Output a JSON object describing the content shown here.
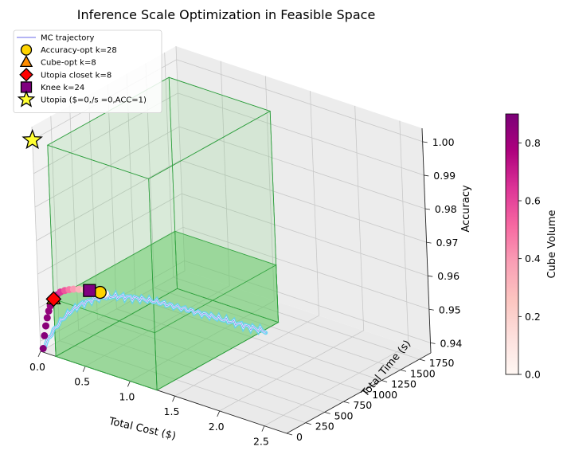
{
  "chart_data": {
    "type": "scatter3d",
    "title": "Inference Scale Optimization in Feasible Space",
    "xlabel": "Total Cost ($)",
    "ylabel": "Total Time (s)",
    "zlabel": "Accuracy",
    "xlim": [
      0,
      2.75
    ],
    "ylim": [
      0,
      1900
    ],
    "zlim": [
      0.937,
      1.004
    ],
    "x_ticks": [
      "0.0",
      "0.5",
      "1.0",
      "1.5",
      "2.0",
      "2.5"
    ],
    "y_ticks": [
      "0",
      "250",
      "500",
      "750",
      "1000",
      "1250",
      "1500",
      "1750"
    ],
    "z_ticks": [
      "0.94",
      "0.95",
      "0.96",
      "0.97",
      "0.98",
      "0.99",
      "1.00"
    ],
    "colorbar": {
      "label": "Cube Volume",
      "range": [
        0,
        0.9
      ],
      "ticks": [
        "0.0",
        "0.2",
        "0.4",
        "0.6",
        "0.8"
      ],
      "colormap": [
        "#fff7f3",
        "#fde0dd",
        "#fcc5c0",
        "#fa9fb5",
        "#f768a1",
        "#dd3497",
        "#ae017e",
        "#7a0177"
      ]
    },
    "legend": [
      {
        "label": "MC trajectory",
        "marker": "line",
        "color": "#6a6ae8"
      },
      {
        "label": "Accuracy-opt k=28",
        "marker": "circle",
        "color": "#ffd400"
      },
      {
        "label": "Cube-opt k=8",
        "marker": "triangle",
        "color": "#ff8c00"
      },
      {
        "label": "Utopia closet k=8",
        "marker": "diamond",
        "color": "#ff0000"
      },
      {
        "label": "Knee k=24",
        "marker": "square",
        "color": "#800080"
      },
      {
        "label": "Utopia ($=0,/s =0,ACC=1)",
        "marker": "star",
        "color": "#ffff33"
      }
    ],
    "trajectory": {
      "k_start": 1,
      "k_end": 50,
      "color": "#5fd0f5",
      "start": {
        "cost": 0.03,
        "time": 0,
        "accuracy": 0.938
      },
      "end": {
        "cost": 2.4,
        "time": 180,
        "accuracy": 0.962
      }
    },
    "scatter_points": [
      {
        "k": 1,
        "cost": 0.03,
        "time": 0,
        "accuracy": 0.9381,
        "cube_volume": 0.88
      },
      {
        "k": 2,
        "cost": 0.05,
        "time": 0,
        "accuracy": 0.9421,
        "cube_volume": 0.87
      },
      {
        "k": 3,
        "cost": 0.07,
        "time": 0,
        "accuracy": 0.9452,
        "cube_volume": 0.86
      },
      {
        "k": 4,
        "cost": 0.09,
        "time": 0,
        "accuracy": 0.9478,
        "cube_volume": 0.85
      },
      {
        "k": 5,
        "cost": 0.11,
        "time": 0,
        "accuracy": 0.95,
        "cube_volume": 0.84
      },
      {
        "k": 6,
        "cost": 0.13,
        "time": 0,
        "accuracy": 0.9517,
        "cube_volume": 0.82
      },
      {
        "k": 7,
        "cost": 0.15,
        "time": 0,
        "accuracy": 0.953,
        "cube_volume": 0.8
      },
      {
        "k": 8,
        "cost": 0.17,
        "time": 0,
        "accuracy": 0.9541,
        "cube_volume": 0.78
      },
      {
        "k": 10,
        "cost": 0.21,
        "time": 0,
        "accuracy": 0.9557,
        "cube_volume": 0.72
      },
      {
        "k": 12,
        "cost": 0.25,
        "time": 0,
        "accuracy": 0.9569,
        "cube_volume": 0.64
      },
      {
        "k": 14,
        "cost": 0.3,
        "time": 0,
        "accuracy": 0.9578,
        "cube_volume": 0.56
      },
      {
        "k": 16,
        "cost": 0.35,
        "time": 0,
        "accuracy": 0.9585,
        "cube_volume": 0.48
      },
      {
        "k": 18,
        "cost": 0.4,
        "time": 0,
        "accuracy": 0.9591,
        "cube_volume": 0.4
      },
      {
        "k": 20,
        "cost": 0.46,
        "time": 0,
        "accuracy": 0.9596,
        "cube_volume": 0.32
      },
      {
        "k": 22,
        "cost": 0.52,
        "time": 0,
        "accuracy": 0.96,
        "cube_volume": 0.24
      },
      {
        "k": 24,
        "cost": 0.58,
        "time": 0,
        "accuracy": 0.9603,
        "cube_volume": 0.17
      },
      {
        "k": 26,
        "cost": 0.64,
        "time": 0,
        "accuracy": 0.9606,
        "cube_volume": 0.11
      },
      {
        "k": 28,
        "cost": 0.7,
        "time": 0,
        "accuracy": 0.9608,
        "cube_volume": 0.06
      },
      {
        "k": 30,
        "cost": 0.76,
        "time": 0,
        "accuracy": 0.961,
        "cube_volume": 0.02
      }
    ],
    "markers": [
      {
        "name": "accuracy-opt-marker",
        "k": 28,
        "cost": 0.7,
        "time": 0,
        "accuracy": 0.9608,
        "marker": "circle",
        "color": "#ffd400"
      },
      {
        "name": "cube-opt-marker",
        "k": 8,
        "cost": 0.17,
        "time": 0,
        "accuracy": 0.9541,
        "marker": "triangle",
        "color": "#ff8c00"
      },
      {
        "name": "utopia-closest-marker",
        "k": 8,
        "cost": 0.17,
        "time": 0,
        "accuracy": 0.9541,
        "marker": "diamond",
        "color": "#ff0000"
      },
      {
        "name": "knee-marker",
        "k": 24,
        "cost": 0.58,
        "time": 0,
        "accuracy": 0.9603,
        "marker": "square",
        "color": "#800080"
      },
      {
        "name": "utopia-marker",
        "cost": 0,
        "time": 0,
        "accuracy": 1.0,
        "marker": "star",
        "color": "#ffff33"
      }
    ],
    "feasible_boxes": [
      {
        "cost": [
          0.17,
          1.3
        ],
        "time": [
          0,
          1600
        ],
        "accuracy": [
          0.937,
          0.9541
        ]
      },
      {
        "cost": [
          0.17,
          1.3
        ],
        "time": [
          0,
          1600
        ],
        "accuracy": [
          0.937,
          1.0
        ]
      }
    ]
  }
}
